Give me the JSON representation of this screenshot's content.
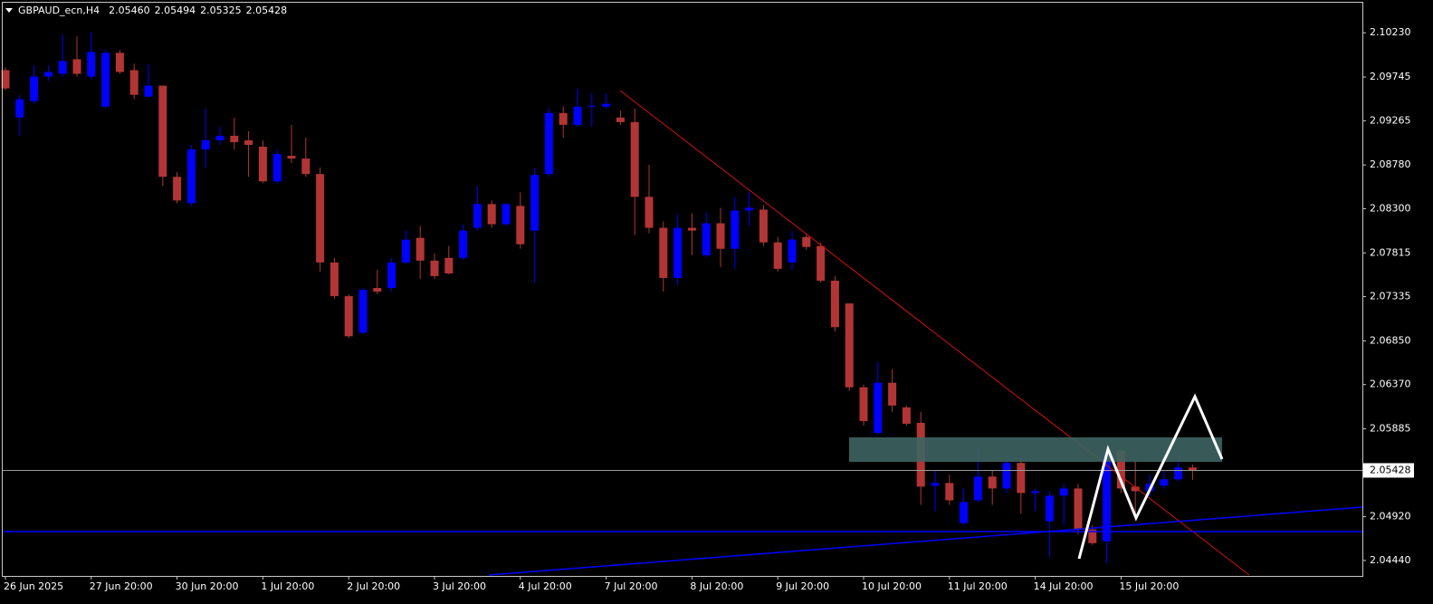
{
  "header": {
    "symbol": "GBPAUD_ecn,H4",
    "values": [
      {
        "value": 2.0546,
        "label": "2.05460"
      },
      2.05494,
      2.05325,
      2.05428
    ]
  },
  "chart_data": {
    "type": "candlestick",
    "categories": [
      "26 Jun 2025",
      null,
      null,
      null,
      null,
      null,
      "27 Jun 20:00",
      null,
      null,
      null,
      null,
      null,
      "30 Jun 20:00",
      null,
      null,
      null,
      null,
      null,
      "1 Jul 20:00",
      null,
      null,
      null,
      null,
      null,
      "2 Jul 20:00",
      null,
      null,
      null,
      null,
      null,
      "3 Jul 20:00",
      null,
      null,
      null,
      null,
      null,
      "4 Jul 20:00",
      null,
      null,
      null,
      null,
      null,
      "7 Jul 20:00",
      null,
      null,
      null,
      null,
      null,
      "8 Jul 20:00",
      null,
      null,
      null,
      null,
      null,
      "9 Jul 20:00",
      null,
      null,
      null,
      null,
      null,
      "10 Jul 20:00",
      null,
      null,
      null,
      null,
      null,
      "11 Jul 20:00",
      null,
      null,
      null,
      null,
      null,
      "14 Jul 20:00",
      null,
      null,
      null,
      null,
      null,
      "15 Jul 20:00",
      null,
      null,
      null,
      null,
      null
    ],
    "open": [
      2.0982,
      2.093,
      2.0948,
      2.0975,
      2.0978,
      2.0994,
      2.0975,
      2.0942,
      2.1001,
      2.0982,
      2.0953,
      2.0965,
      2.0865,
      2.0836,
      2.0895,
      2.0905,
      2.091,
      2.0905,
      2.0898,
      2.086,
      2.0888,
      2.0885,
      2.0868,
      2.0771,
      2.0734,
      2.0694,
      2.0743,
      2.0743,
      2.0771,
      2.0798,
      2.0773,
      2.0776,
      2.0776,
      2.0809,
      2.0835,
      2.0813,
      2.0833,
      2.0806,
      2.0868,
      2.0935,
      2.0922,
      2.0942,
      2.0942,
      2.093,
      2.0925,
      2.0843,
      2.0809,
      2.0754,
      2.0809,
      2.0779,
      2.0814,
      2.0786,
      2.0828,
      2.0829,
      2.0793,
      2.0771,
      2.0799,
      2.0789,
      2.0751,
      2.0726,
      2.0634,
      2.0584,
      2.0639,
      2.0612,
      2.0595,
      2.0526,
      2.0529,
      2.0485,
      2.051,
      2.0536,
      2.0523,
      2.0551,
      2.0518,
      2.0487,
      2.0515,
      2.0523,
      2.0478,
      2.0465,
      2.0564,
      2.0525,
      2.052,
      2.0526,
      2.0533,
      2.0546
    ],
    "high": [
      2.0985,
      2.0955,
      2.0987,
      2.0987,
      2.1021,
      2.1019,
      2.1024,
      2.1004,
      2.1004,
      2.0989,
      2.0989,
      2.0965,
      2.087,
      2.09,
      2.094,
      2.092,
      2.093,
      2.0915,
      2.0905,
      2.0895,
      2.0922,
      2.0908,
      2.0875,
      2.0776,
      2.0736,
      2.0743,
      2.0763,
      2.0776,
      2.0806,
      2.0811,
      2.0781,
      2.0789,
      2.0813,
      2.0855,
      2.0839,
      2.0836,
      2.0848,
      2.0875,
      2.094,
      2.0942,
      2.0962,
      2.0957,
      2.0957,
      2.0938,
      2.094,
      2.0878,
      2.0816,
      2.0824,
      2.0825,
      2.0826,
      2.0831,
      2.0843,
      2.0848,
      2.0834,
      2.0799,
      2.0806,
      2.0803,
      2.0793,
      2.0756,
      2.0726,
      2.0637,
      2.0662,
      2.0654,
      2.0614,
      2.0607,
      2.0543,
      2.0538,
      2.0523,
      2.0567,
      2.0543,
      2.0555,
      2.0555,
      2.0523,
      2.052,
      2.0528,
      2.0528,
      2.0483,
      2.0564,
      2.0567,
      2.0553,
      2.0538,
      2.0543,
      2.0562,
      2.05494
    ],
    "low": [
      2.096,
      2.091,
      2.0945,
      2.097,
      2.0975,
      2.0975,
      2.0972,
      2.094,
      2.0978,
      2.095,
      2.0952,
      2.0855,
      2.0836,
      2.0833,
      2.0875,
      2.09,
      2.0895,
      2.0865,
      2.0858,
      2.0857,
      2.088,
      2.0865,
      2.0761,
      2.0731,
      2.0688,
      2.0692,
      2.0736,
      2.0739,
      2.0769,
      2.0753,
      2.0753,
      2.0758,
      2.0774,
      2.0806,
      2.0809,
      2.0811,
      2.0786,
      2.0749,
      2.0865,
      2.0908,
      2.092,
      2.092,
      2.094,
      2.0922,
      2.0801,
      2.0803,
      2.0739,
      2.0746,
      2.0779,
      2.0776,
      2.0766,
      2.0764,
      2.0811,
      2.0789,
      2.0761,
      2.0763,
      2.0785,
      2.0749,
      2.0695,
      2.063,
      2.0592,
      2.0582,
      2.0607,
      2.0592,
      2.0505,
      2.0498,
      2.0505,
      2.0483,
      2.0508,
      2.0505,
      2.0518,
      2.0495,
      2.0498,
      2.0448,
      2.0483,
      2.0473,
      2.0461,
      2.0441,
      2.0518,
      2.0488,
      2.0515,
      2.0523,
      2.0531,
      2.05325
    ],
    "close": [
      2.0962,
      2.095,
      2.0975,
      2.098,
      2.0992,
      2.0978,
      2.1002,
      2.1001,
      2.098,
      2.0955,
      2.0965,
      2.0865,
      2.0839,
      2.0895,
      2.0905,
      2.091,
      2.0903,
      2.09,
      2.086,
      2.089,
      2.0885,
      2.0868,
      2.0771,
      2.0734,
      2.069,
      2.0741,
      2.0739,
      2.0771,
      2.0796,
      2.0773,
      2.0756,
      2.0759,
      2.0806,
      2.0835,
      2.0813,
      2.0835,
      2.0791,
      2.0867,
      2.0935,
      2.0922,
      2.0942,
      2.0943,
      2.0945,
      2.0925,
      2.0843,
      2.0809,
      2.0754,
      2.0809,
      2.0806,
      2.0814,
      2.0786,
      2.0828,
      2.0831,
      2.0793,
      2.0764,
      2.0796,
      2.0788,
      2.0751,
      2.07,
      2.0634,
      2.0597,
      2.0639,
      2.0614,
      2.0594,
      2.0525,
      2.0529,
      2.051,
      2.0508,
      2.0536,
      2.0523,
      2.0551,
      2.0518,
      2.052,
      2.0515,
      2.0523,
      2.0478,
      2.0463,
      2.0562,
      2.0523,
      2.052,
      2.0528,
      2.0533,
      2.0546,
      2.05428
    ],
    "up_color": "#0000ff",
    "down_color": "#b23535",
    "ylim": [
      2.0428,
      2.1059
    ],
    "yticks": [
      {
        "value": 2.1023,
        "label": "2.10230"
      },
      2.09745,
      2.09265,
      {
        "value": 2.0878,
        "label": "2.08780"
      },
      {
        "value": 2.083,
        "label": "2.08300"
      },
      2.07815,
      2.07335,
      {
        "value": 2.0685,
        "label": "2.06850"
      },
      {
        "value": 2.0637,
        "label": "2.06370"
      },
      2.05885,
      {
        "value": 2.0492,
        "label": "2.04920"
      },
      {
        "value": 2.0444,
        "label": "2.04440"
      }
    ],
    "current_price": 2.05428,
    "grid": false
  }
}
